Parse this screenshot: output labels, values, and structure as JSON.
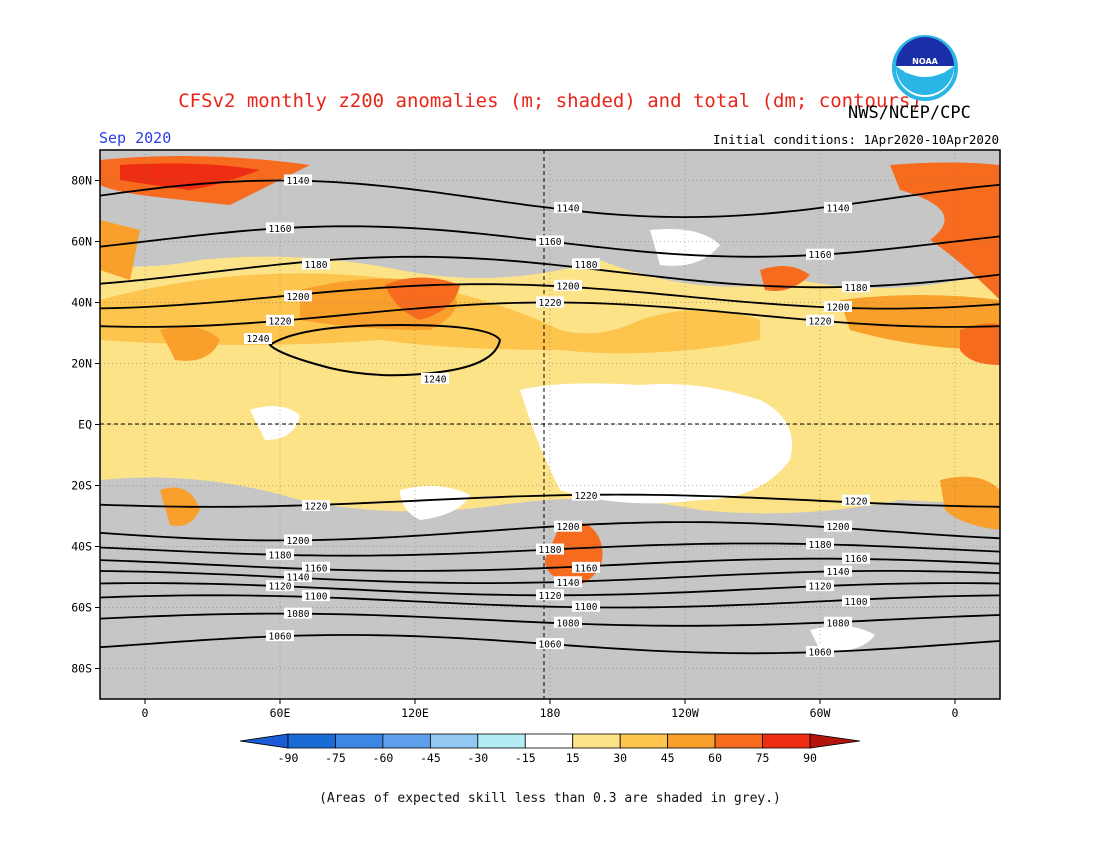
{
  "title": "CFSv2 monthly z200 anomalies (m; shaded) and total (dm; contours)",
  "agency": "NWS/NCEP/CPC",
  "logo_text": "NOAA",
  "month": "Sep 2020",
  "initial_conditions": "Initial conditions: 1Apr2020-10Apr2020",
  "footnote": "(Areas of expected skill less than 0.3 are shaded in grey.)",
  "map": {
    "lat_labels": [
      "80N",
      "60N",
      "40N",
      "20N",
      "EQ",
      "20S",
      "40S",
      "60S",
      "80S"
    ],
    "lat_values": [
      80,
      60,
      40,
      20,
      0,
      -20,
      -40,
      -60,
      -80
    ],
    "lon_labels": [
      "0",
      "60E",
      "120E",
      "180",
      "120W",
      "60W",
      "0"
    ],
    "lon_values": [
      0,
      60,
      120,
      180,
      240,
      300,
      360
    ],
    "lat_range": [
      -90,
      90
    ],
    "lon_range": [
      -20,
      380
    ],
    "grey_color": "#c6c6c6"
  },
  "contours": [
    {
      "value": 1060,
      "label": "1060",
      "lat_at_0": -72,
      "amp": 3
    },
    {
      "value": 1080,
      "label": "1080",
      "lat_at_0": -64,
      "amp": 2
    },
    {
      "value": 1100,
      "label": "1100",
      "lat_at_0": -58,
      "amp": 2
    },
    {
      "value": 1120,
      "label": "1120",
      "lat_at_0": -54,
      "amp": 2
    },
    {
      "value": 1140,
      "label": "1140",
      "lat_at_0": -50,
      "amp": 2
    },
    {
      "value": 1160,
      "label": "1160",
      "lat_at_0": -46,
      "amp": 2
    },
    {
      "value": 1180,
      "label": "1180",
      "lat_at_0": -41,
      "amp": 2
    },
    {
      "value": 1200,
      "label": "1200",
      "lat_at_0": -35,
      "amp": 3
    },
    {
      "value": 1220,
      "label": "1220",
      "lat_at_0": -25,
      "amp": 2
    },
    {
      "value": 1220,
      "label": "1220",
      "lat_at_0": 36,
      "amp": 4
    },
    {
      "value": 1200,
      "label": "1200",
      "lat_at_0": 42,
      "amp": 4
    },
    {
      "value": 1180,
      "label": "1180",
      "lat_at_0": 50,
      "amp": 5
    },
    {
      "value": 1160,
      "label": "1160",
      "lat_at_0": 60,
      "amp": 5
    },
    {
      "value": 1140,
      "label": "1140",
      "lat_at_0": 74,
      "amp": 6
    }
  ],
  "contour_labels_text": [
    "1140",
    "1160",
    "1180",
    "1200",
    "1220",
    "1240",
    "1060",
    "1080",
    "1100",
    "1120"
  ],
  "colorbar": {
    "levels": [
      "-90",
      "-75",
      "-60",
      "-45",
      "-30",
      "-15",
      "15",
      "30",
      "45",
      "60",
      "75",
      "90"
    ],
    "colors": [
      "#1a6bd6",
      "#3c86e4",
      "#5fa0ec",
      "#93c8f2",
      "#b4ecf3",
      "#ffffff",
      "#fde387",
      "#fdc44e",
      "#f99f2b",
      "#f76b1e",
      "#ee2d12",
      "#c81a0a"
    ],
    "low_arrow_color": "#1b5cd6",
    "high_arrow_color": "#b3150e"
  }
}
